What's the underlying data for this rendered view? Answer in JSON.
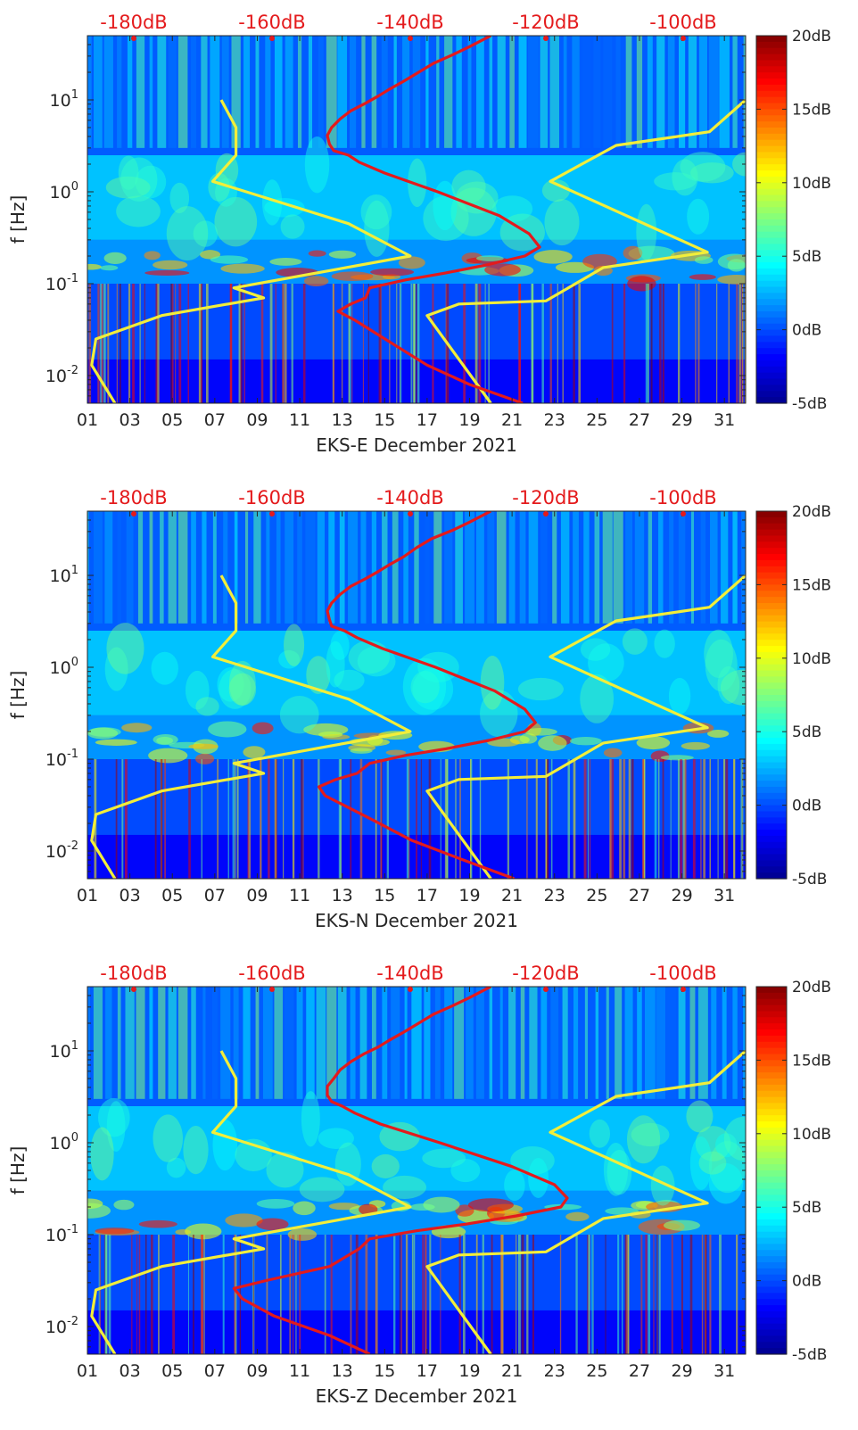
{
  "colors": {
    "psd_curve": "#e41a1c",
    "model_curve": "#f2ee3a",
    "top_axis_text": "#e41a1c",
    "axis_text": "#262626",
    "colormap": [
      "#00008f",
      "#0000ff",
      "#007fff",
      "#00ffff",
      "#7fff7f",
      "#ffff00",
      "#ff7f00",
      "#ff0000",
      "#7f0000"
    ]
  },
  "chart_data": [
    {
      "type": "heatmap",
      "xlabel": "EKS-E December 2021",
      "ylabel": "f [Hz]",
      "xlim": [
        1,
        32
      ],
      "xticks": [
        "01",
        "03",
        "05",
        "07",
        "09",
        "11",
        "13",
        "15",
        "17",
        "19",
        "21",
        "23",
        "25",
        "27",
        "29",
        "31"
      ],
      "yscale": "log",
      "ylim": [
        0.005,
        50
      ],
      "yticks": [
        "10-2",
        "10-1",
        "100",
        "101"
      ],
      "top_axis_ticks": [
        "-180dB",
        "-160dB",
        "-140dB",
        "-120dB",
        "-100dB"
      ],
      "colorbar_ticks": [
        "20dB",
        "15dB",
        "10dB",
        "5dB",
        "0dB",
        "-5dB"
      ],
      "clim": [
        -5,
        20
      ],
      "grid": false,
      "psd_curve": {
        "color": "red",
        "x": [
          21.5,
          19,
          17,
          15.4,
          13.6,
          12.8,
          13.4,
          14.1,
          14.3,
          16,
          17.8,
          19.8,
          21.6,
          22.3,
          21.8,
          20.4,
          17.5,
          15,
          13.8,
          13.3,
          12.6,
          12.4,
          12.3,
          12.5,
          12.9,
          13.4,
          14.1,
          14.7,
          15.2,
          15.9,
          16.6,
          17.3,
          18.2,
          19,
          20
        ],
        "y": [
          0.005,
          0.008,
          0.013,
          0.022,
          0.04,
          0.05,
          0.06,
          0.07,
          0.09,
          0.11,
          0.13,
          0.16,
          0.2,
          0.25,
          0.35,
          0.55,
          1.0,
          1.6,
          2.1,
          2.5,
          2.8,
          3.3,
          4.1,
          5.0,
          6.2,
          7.6,
          9.2,
          11,
          13,
          16,
          20,
          25,
          31,
          38,
          50
        ]
      },
      "model_curves": [
        {
          "color": "yellow",
          "x": [
            2.3,
            1.2,
            1.4,
            4.5,
            9.3,
            7.9,
            16.2,
            13.3,
            6.9,
            8.0,
            8.0,
            7.3
          ],
          "y": [
            0.005,
            0.013,
            0.025,
            0.045,
            0.07,
            0.09,
            0.2,
            0.45,
            1.3,
            2.5,
            5,
            10
          ]
        },
        {
          "color": "yellow",
          "x": [
            20.0,
            17.0,
            18.5,
            22.6,
            25.3,
            30.2,
            22.8,
            25.9,
            30.3,
            32
          ],
          "y": [
            0.005,
            0.045,
            0.06,
            0.065,
            0.15,
            0.22,
            1.3,
            3.2,
            4.5,
            10
          ]
        }
      ]
    },
    {
      "type": "heatmap",
      "xlabel": "EKS-N December 2021",
      "ylabel": "f [Hz]",
      "xlim": [
        1,
        32
      ],
      "xticks": [
        "01",
        "03",
        "05",
        "07",
        "09",
        "11",
        "13",
        "15",
        "17",
        "19",
        "21",
        "23",
        "25",
        "27",
        "29",
        "31"
      ],
      "yscale": "log",
      "ylim": [
        0.005,
        50
      ],
      "yticks": [
        "10-2",
        "10-1",
        "100",
        "101"
      ],
      "top_axis_ticks": [
        "-180dB",
        "-160dB",
        "-140dB",
        "-120dB",
        "-100dB"
      ],
      "colorbar_ticks": [
        "20dB",
        "15dB",
        "10dB",
        "5dB",
        "0dB",
        "-5dB"
      ],
      "clim": [
        -5,
        20
      ],
      "grid": false,
      "psd_curve": {
        "color": "red",
        "x": [
          21.1,
          18.7,
          16.3,
          14.4,
          12.2,
          11.9,
          12.7,
          13.7,
          14.3,
          16,
          17.9,
          19.9,
          21.6,
          22.1,
          21.6,
          20.2,
          17.4,
          14.9,
          13.7,
          13.1,
          12.5,
          12.4,
          12.3,
          12.5,
          12.9,
          13.4,
          14.1,
          14.7,
          15.2,
          15.9,
          16.5,
          17.2,
          18.2,
          19,
          20
        ],
        "y": [
          0.005,
          0.008,
          0.013,
          0.022,
          0.04,
          0.05,
          0.06,
          0.07,
          0.09,
          0.11,
          0.13,
          0.16,
          0.2,
          0.25,
          0.35,
          0.55,
          1.0,
          1.6,
          2.1,
          2.5,
          2.8,
          3.3,
          4.1,
          5.0,
          6.2,
          7.6,
          9.2,
          11,
          13,
          16,
          20,
          25,
          31,
          38,
          50
        ]
      },
      "model_curves": [
        {
          "color": "yellow",
          "x": [
            2.3,
            1.2,
            1.4,
            4.5,
            9.3,
            7.9,
            16.2,
            13.3,
            6.9,
            8.0,
            8.0,
            7.3
          ],
          "y": [
            0.005,
            0.013,
            0.025,
            0.045,
            0.07,
            0.09,
            0.2,
            0.45,
            1.3,
            2.5,
            5,
            10
          ]
        },
        {
          "color": "yellow",
          "x": [
            20.0,
            17.0,
            18.5,
            22.6,
            25.3,
            30.2,
            22.8,
            25.9,
            30.3,
            32
          ],
          "y": [
            0.005,
            0.045,
            0.06,
            0.065,
            0.15,
            0.22,
            1.3,
            3.2,
            4.5,
            10
          ]
        }
      ]
    },
    {
      "type": "heatmap",
      "xlabel": "EKS-Z December 2021",
      "ylabel": "f [Hz]",
      "xlim": [
        1,
        32
      ],
      "xticks": [
        "01",
        "03",
        "05",
        "07",
        "09",
        "11",
        "13",
        "15",
        "17",
        "19",
        "21",
        "23",
        "25",
        "27",
        "29",
        "31"
      ],
      "yscale": "log",
      "ylim": [
        0.005,
        50
      ],
      "yticks": [
        "10-2",
        "10-1",
        "100",
        "101"
      ],
      "top_axis_ticks": [
        "-180dB",
        "-160dB",
        "-140dB",
        "-120dB",
        "-100dB"
      ],
      "colorbar_ticks": [
        "20dB",
        "15dB",
        "10dB",
        "5dB",
        "0dB",
        "-5dB"
      ],
      "clim": [
        -5,
        20
      ],
      "grid": false,
      "psd_curve": {
        "color": "red",
        "x": [
          14.3,
          12.4,
          9.8,
          8.3,
          7.9,
          9.5,
          12.4,
          13.8,
          14.3,
          16.5,
          18.8,
          21.2,
          23.3,
          23.6,
          23,
          21,
          17.6,
          14.8,
          13.6,
          13.0,
          12.5,
          12.3,
          12.3,
          12.6,
          12.9,
          13.4,
          14.0,
          14.7,
          15.2,
          15.9,
          16.6,
          17.3,
          18.2,
          19,
          20
        ],
        "y": [
          0.005,
          0.008,
          0.013,
          0.02,
          0.026,
          0.032,
          0.045,
          0.07,
          0.09,
          0.11,
          0.13,
          0.16,
          0.2,
          0.25,
          0.35,
          0.55,
          1.0,
          1.6,
          2.1,
          2.5,
          2.8,
          3.3,
          4.1,
          5.0,
          6.2,
          7.6,
          9.2,
          11,
          13,
          16,
          20,
          25,
          31,
          38,
          50
        ]
      },
      "model_curves": [
        {
          "color": "yellow",
          "x": [
            2.3,
            1.2,
            1.4,
            4.5,
            9.3,
            7.9,
            16.2,
            13.3,
            6.9,
            8.0,
            8.0,
            7.3
          ],
          "y": [
            0.005,
            0.013,
            0.025,
            0.045,
            0.07,
            0.09,
            0.2,
            0.45,
            1.3,
            2.5,
            5,
            10
          ]
        },
        {
          "color": "yellow",
          "x": [
            20.0,
            17.0,
            18.5,
            22.6,
            25.3,
            30.2,
            22.8,
            25.9,
            30.3,
            32
          ],
          "y": [
            0.005,
            0.045,
            0.06,
            0.065,
            0.15,
            0.22,
            1.3,
            3.2,
            4.5,
            10
          ]
        }
      ]
    }
  ]
}
